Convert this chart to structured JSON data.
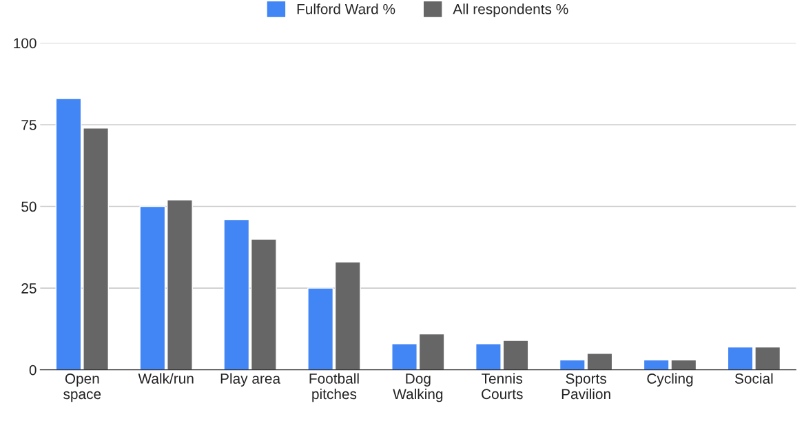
{
  "chart_data": {
    "type": "bar",
    "categories": [
      "Open\nspace",
      "Walk/run",
      "Play area",
      "Football\npitches",
      "Dog\nWalking",
      "Tennis\nCourts",
      "Sports\nPavilion",
      "Cycling",
      "Social"
    ],
    "series": [
      {
        "name": "Fulford Ward %",
        "color": "#4285f4",
        "values": [
          83,
          50,
          46,
          25,
          8,
          8,
          3,
          3,
          7
        ]
      },
      {
        "name": "All respondents %",
        "color": "#666666",
        "values": [
          74,
          52,
          40,
          33,
          11,
          9,
          5,
          3,
          7
        ]
      }
    ],
    "ylim": [
      0,
      100
    ],
    "yticks": [
      0,
      25,
      50,
      75,
      100
    ],
    "grid": "y",
    "legend": "top"
  }
}
